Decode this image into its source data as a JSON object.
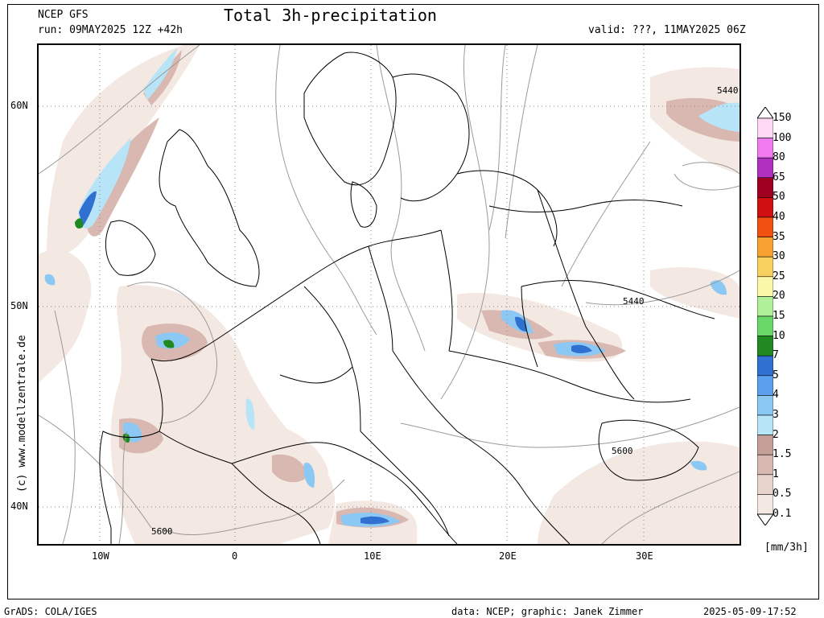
{
  "header": {
    "model": "NCEP GFS",
    "run": "run: 09MAY2025 12Z +42h",
    "title": "Total 3h-precipitation",
    "valid": "valid: ???, 11MAY2025 06Z"
  },
  "map": {
    "lat_labels": [
      "60N",
      "50N",
      "40N"
    ],
    "lon_labels": [
      "10W",
      "0",
      "10E",
      "20E",
      "30E"
    ],
    "contour_labels": [
      "5440",
      "5440",
      "5600",
      "5600"
    ],
    "credit": "(c) www.modellzentrale.de"
  },
  "legend": {
    "units": "[mm/3h]",
    "levels": [
      "150",
      "100",
      "80",
      "65",
      "50",
      "40",
      "35",
      "30",
      "25",
      "20",
      "15",
      "10",
      "7",
      "5",
      "4",
      "3",
      "2",
      "1.5",
      "1",
      "0.5",
      "0.1"
    ],
    "colors": [
      "#ffd8f6",
      "#f07af0",
      "#b030c0",
      "#a00020",
      "#d01010",
      "#f05010",
      "#f8a030",
      "#f8d060",
      "#f8f8a8",
      "#b0f098",
      "#68d868",
      "#208a20",
      "#3070d0",
      "#5aa0ee",
      "#8cc8f4",
      "#b8e4f8",
      "#c4a098",
      "#d8b8b0",
      "#e8d4cc",
      "#f4e8e2"
    ]
  },
  "footer": {
    "left": "GrADS: COLA/IGES",
    "data": "data: NCEP; graphic: Janek Zimmer",
    "timestamp": "2025-05-09-17:52"
  }
}
